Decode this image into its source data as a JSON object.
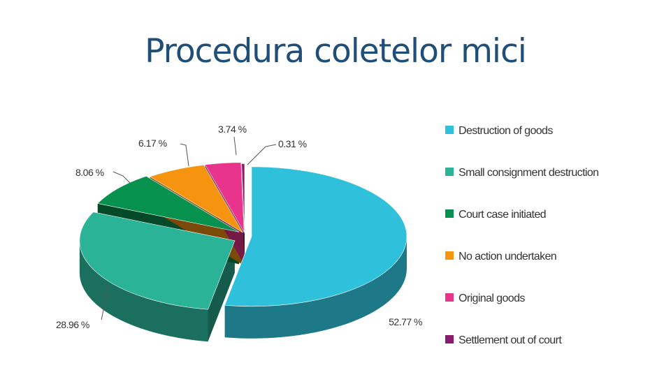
{
  "title": "Procedura coletelor mici",
  "chart_data": {
    "type": "pie",
    "title": "",
    "slices": [
      {
        "label": "Destruction of goods",
        "value": 52.77,
        "display": "52.77 %",
        "color": "#2fc1db"
      },
      {
        "label": "Small consignment destruction",
        "value": 28.96,
        "display": "28.96 %",
        "color": "#2bb397"
      },
      {
        "label": "Court case initiated",
        "value": 8.06,
        "display": "8.06 %",
        "color": "#07914f"
      },
      {
        "label": "No action undertaken",
        "value": 6.17,
        "display": "6.17 %",
        "color": "#f7940f"
      },
      {
        "label": "Original goods",
        "value": 3.74,
        "display": "3.74 %",
        "color": "#e8348a"
      },
      {
        "label": "Settlement out of court",
        "value": 0.31,
        "display": "0.31 %",
        "color": "#8a1a6b"
      }
    ],
    "legend_position": "right"
  }
}
